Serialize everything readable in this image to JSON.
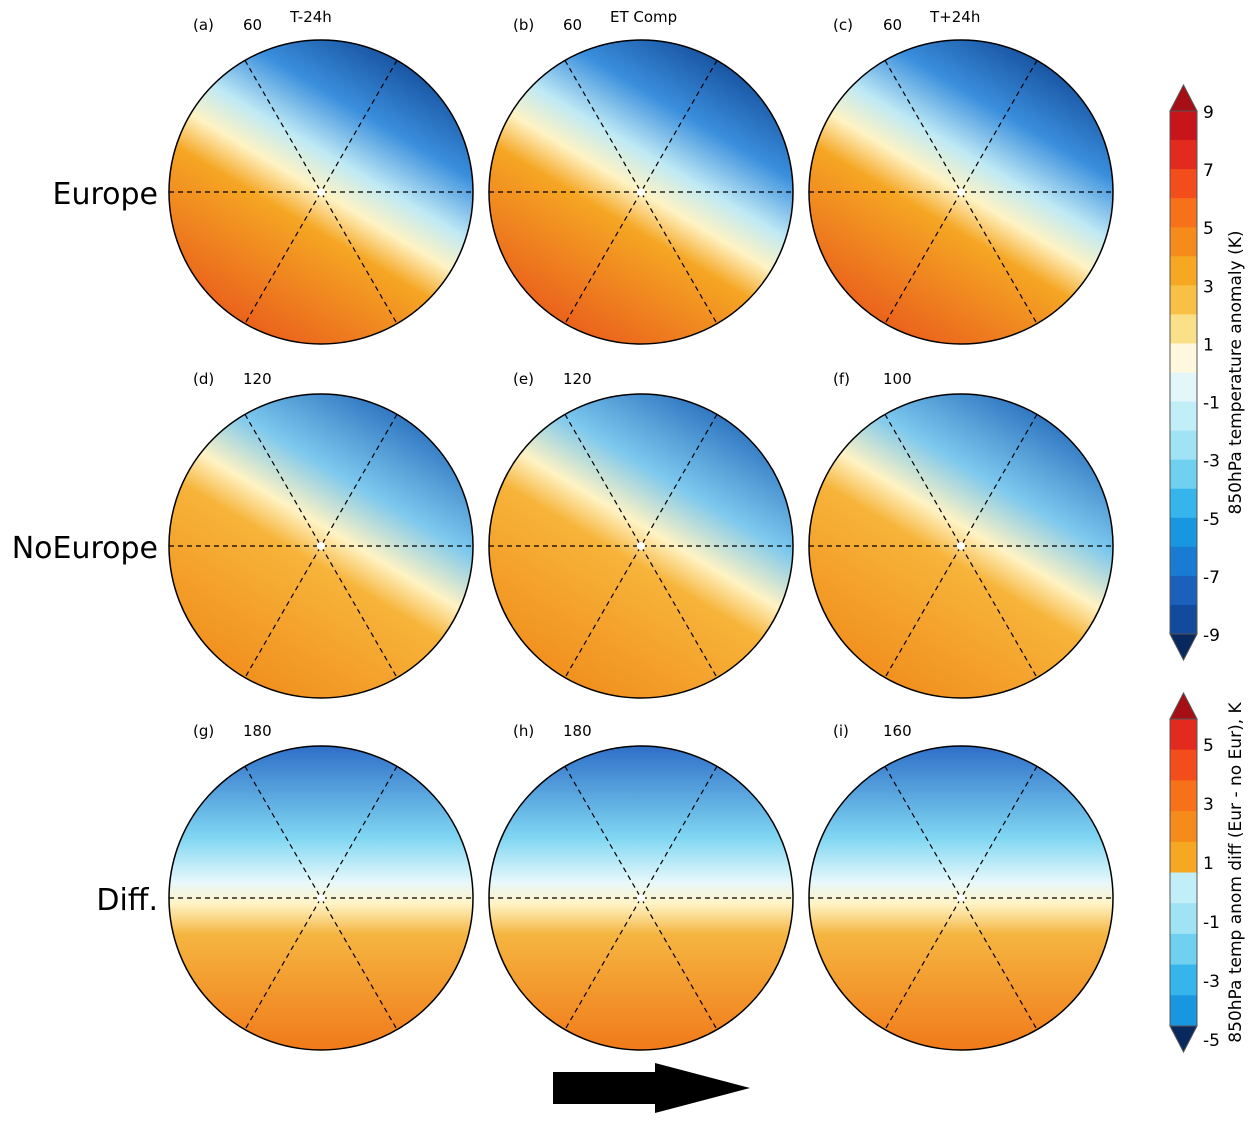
{
  "panels": [
    {
      "label": "(a)",
      "count": "60",
      "title": "T-24h"
    },
    {
      "label": "(b)",
      "count": "60",
      "title": "ET Comp"
    },
    {
      "label": "(c)",
      "count": "60",
      "title": "T+24h"
    },
    {
      "label": "(d)",
      "count": "120"
    },
    {
      "label": "(e)",
      "count": "120"
    },
    {
      "label": "(f)",
      "count": "100"
    },
    {
      "label": "(g)",
      "count": "180"
    },
    {
      "label": "(h)",
      "count": "180"
    },
    {
      "label": "(i)",
      "count": "160"
    }
  ],
  "row_labels": [
    "Europe",
    "NoEurope",
    "Diff."
  ],
  "colorbars": [
    {
      "ticks": [
        9,
        7,
        5,
        3,
        1,
        -1,
        -3,
        -5,
        -7,
        -9
      ],
      "title": "850hPa temperature anomaly (K)"
    },
    {
      "ticks": [
        5,
        3,
        1,
        -1,
        -3,
        -5
      ],
      "title": "850hPa temp anom diff (Eur - no Eur), K"
    }
  ]
}
